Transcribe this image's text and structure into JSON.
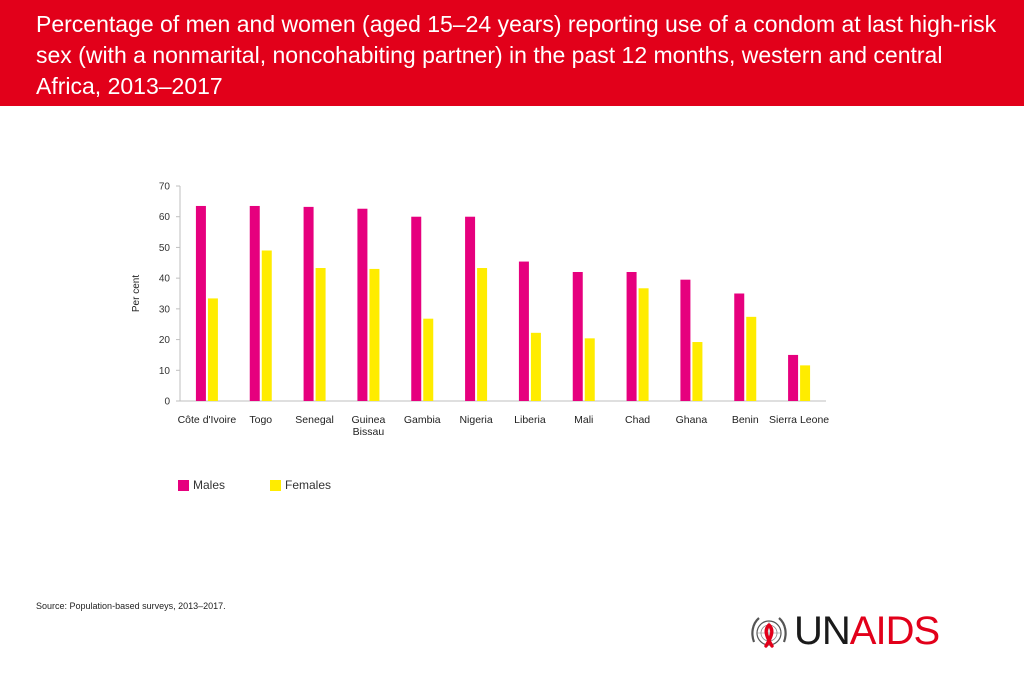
{
  "header": {
    "title": "Percentage of men and women (aged 15–24 years) reporting use of a condom at last high-risk sex (with a nonmarital, noncohabiting partner) in the past 12 months, western and central Africa, 2013–2017"
  },
  "chart_data": {
    "type": "bar",
    "title": "",
    "xlabel": "",
    "ylabel": "Per cent",
    "ylim": [
      0,
      70
    ],
    "yticks": [
      0,
      10,
      20,
      30,
      40,
      50,
      60,
      70
    ],
    "grid": false,
    "legend_position": "bottom-left",
    "categories": [
      "Côte d'Ivoire",
      "Togo",
      "Senegal",
      "Guinea Bissau",
      "Gambia",
      "Nigeria",
      "Liberia",
      "Mali",
      "Chad",
      "Ghana",
      "Benin",
      "Sierra Leone"
    ],
    "category_lines": [
      [
        "Côte d'Ivoire"
      ],
      [
        "Togo"
      ],
      [
        "Senegal"
      ],
      [
        "Guinea",
        "Bissau"
      ],
      [
        "Gambia"
      ],
      [
        "Nigeria"
      ],
      [
        "Liberia"
      ],
      [
        "Mali"
      ],
      [
        "Chad"
      ],
      [
        "Ghana"
      ],
      [
        "Benin"
      ],
      [
        "Sierra Leone"
      ]
    ],
    "series": [
      {
        "name": "Males",
        "color": "#e6007e",
        "values": [
          63.5,
          63.5,
          63.2,
          62.6,
          60,
          60,
          45.4,
          42,
          42,
          39.5,
          35,
          15
        ]
      },
      {
        "name": "Females",
        "color": "#ffec00",
        "values": [
          33.4,
          49,
          43.3,
          43,
          26.8,
          43.3,
          22.2,
          20.4,
          36.7,
          19.2,
          27.4,
          11.6
        ]
      }
    ]
  },
  "source": {
    "label": "Source:",
    "text": " Population-based surveys, 2013–2017."
  },
  "logo": {
    "text_un": "UN",
    "text_aids": "AIDS",
    "emblem": "un-emblem-red-ribbon-icon"
  },
  "colors": {
    "header_bg": "#e2001a",
    "males": "#e6007e",
    "females": "#ffec00"
  }
}
